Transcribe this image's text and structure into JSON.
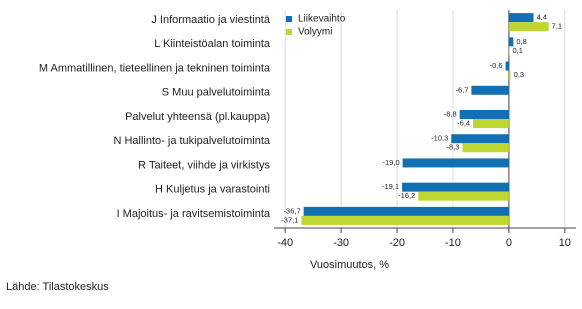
{
  "chart_data": {
    "type": "hbar",
    "categories": [
      "J Informaatio ja viestintä",
      "L Kiinteistöalan toiminta",
      "M Ammatillinen, tieteellinen ja tekninen toiminta",
      "S Muu palvelutoiminta",
      "Palvelut yhteensä (pl.kauppa)",
      "N Hallinto- ja tukipalvelutoiminta",
      "R Taiteet, viihde ja virkistys",
      "H Kuljetus ja varastointi",
      "I Majoitus- ja ravitsemistoiminta"
    ],
    "series": [
      {
        "name": "Liikevaihto",
        "color": "#1170b4",
        "values": [
          4.4,
          0.8,
          -0.6,
          -6.7,
          -8.8,
          -10.3,
          -19.0,
          -19.1,
          -36.7
        ],
        "value_labels": [
          "4,4",
          "0,8",
          "-0,6",
          "-6,7",
          "-8,8",
          "-10,3",
          "-19,0",
          "-19,1",
          "-36,7"
        ]
      },
      {
        "name": "Volyymi",
        "color": "#bed62f",
        "values": [
          7.1,
          0.1,
          0.3,
          null,
          -6.4,
          -8.3,
          null,
          -16.2,
          -37.1
        ],
        "value_labels": [
          "7,1",
          "0,1",
          "0,3",
          null,
          "-6,4",
          "-8,3",
          null,
          "-16,2",
          "-37,1"
        ]
      }
    ],
    "xlim": [
      -42,
      12
    ],
    "xticks": [
      -40,
      -30,
      -20,
      -10,
      0,
      10
    ],
    "grid": true,
    "xlabel": "Vuosimuutos, %",
    "source": "Lähde: Tilastokeskus"
  }
}
